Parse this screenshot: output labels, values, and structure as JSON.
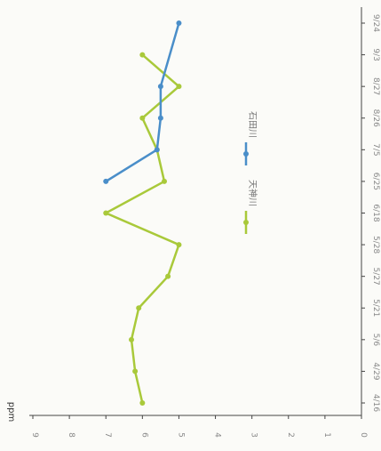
{
  "chart_data": {
    "type": "line",
    "orientation": "rotated-90-clockwise",
    "ylabel": "ppm",
    "ylim": [
      0,
      9
    ],
    "y_ticks": [
      0,
      1,
      2,
      3,
      4,
      5,
      6,
      7,
      8,
      9
    ],
    "categories": [
      "4/16",
      "4/29",
      "5/6",
      "5/21",
      "5/27",
      "5/28",
      "6/18",
      "6/25",
      "7/5",
      "8/26",
      "8/27",
      "9/3",
      "9/24"
    ],
    "series": [
      {
        "name": "天神川",
        "color": "#a9c93a",
        "values": [
          6.0,
          6.2,
          6.3,
          6.1,
          5.3,
          5.0,
          7.0,
          5.4,
          5.6,
          6.0,
          5.0,
          6.0,
          null
        ]
      },
      {
        "name": "石田川",
        "color": "#4a8ec9",
        "values": [
          null,
          null,
          null,
          null,
          null,
          null,
          null,
          7.0,
          5.6,
          5.5,
          5.5,
          null,
          5.0
        ]
      }
    ],
    "legend_position": "center"
  }
}
